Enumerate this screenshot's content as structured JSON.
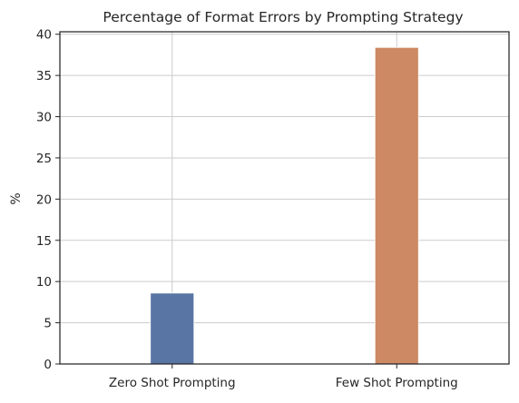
{
  "chart_data": {
    "type": "bar",
    "title": "Percentage of Format Errors by Prompting Strategy",
    "xlabel": "",
    "ylabel": "%",
    "categories": [
      "Zero Shot Prompting",
      "Few Shot Prompting"
    ],
    "values": [
      8.6,
      38.4
    ],
    "colors": [
      "#5975a4",
      "#cc8963"
    ],
    "ylim": [
      0,
      40.3
    ],
    "yticks": [
      0,
      5,
      10,
      15,
      20,
      25,
      30,
      35,
      40
    ],
    "grid": true
  }
}
